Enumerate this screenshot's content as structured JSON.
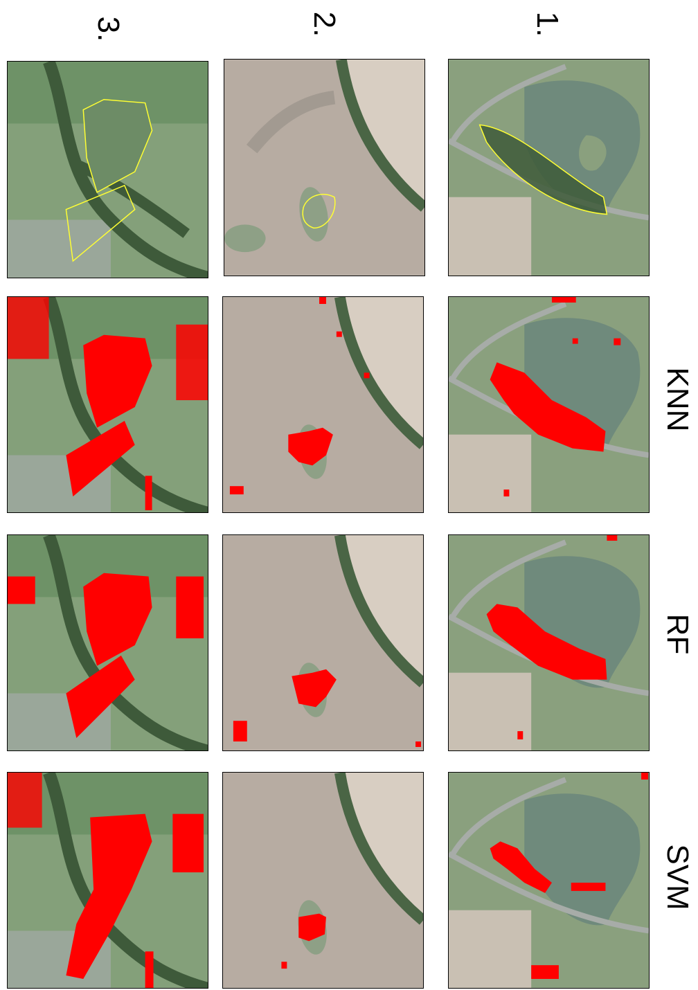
{
  "figure": {
    "rows": [
      {
        "label": "1.",
        "scene": "lake"
      },
      {
        "label": "2.",
        "scene": "field"
      },
      {
        "label": "3.",
        "scene": "meadow"
      }
    ],
    "columns": [
      {
        "label": "",
        "type": "reference"
      },
      {
        "label": "KNN",
        "type": "classification"
      },
      {
        "label": "RF",
        "type": "classification"
      },
      {
        "label": "SVM",
        "type": "classification"
      }
    ],
    "colors": {
      "detection": "#ff0000",
      "reference_outline": "#ffff33",
      "lake": "#6f8a7c",
      "road": "#a7aca8",
      "field": "#b7aca2",
      "meadow": "#84a07a",
      "trees": "#3e5a3a"
    }
  }
}
